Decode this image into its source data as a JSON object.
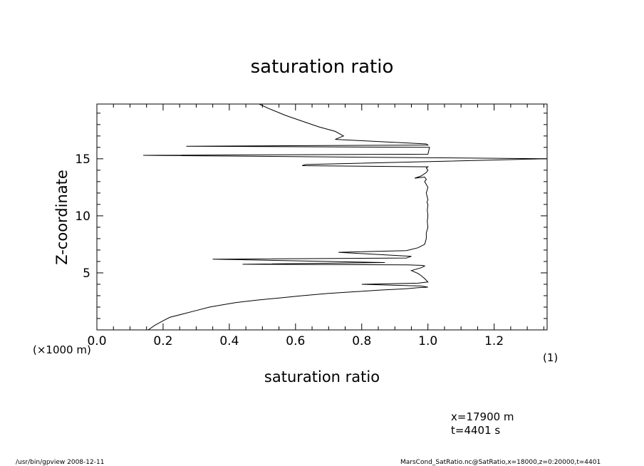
{
  "chart_data": {
    "type": "line",
    "title": "saturation ratio",
    "xlabel": "saturation ratio",
    "ylabel": "Z-coordinate",
    "x_unit_label": "(1)",
    "y_unit_label": "(×1000 m)",
    "xlim": [
      0.0,
      1.36
    ],
    "ylim": [
      0.0,
      19.8
    ],
    "x_ticks": [
      0.0,
      0.2,
      0.4,
      0.6,
      0.8,
      1.0,
      1.2
    ],
    "x_tick_labels": [
      "0.0",
      "0.2",
      "0.4",
      "0.6",
      "0.8",
      "1.0",
      "1.2"
    ],
    "y_ticks": [
      5,
      10,
      15
    ],
    "y_tick_labels": [
      "5",
      "10",
      "15"
    ],
    "grid": false,
    "legend": "none",
    "series": [
      {
        "x": [
          0.155,
          0.175,
          0.2,
          0.22,
          0.26,
          0.3,
          0.34,
          0.38,
          0.42,
          0.48,
          0.55,
          0.62,
          0.7,
          0.78,
          0.86,
          0.93,
          0.97,
          1.0,
          0.98,
          0.8,
          0.97,
          1.0,
          0.99,
          0.98,
          0.97,
          0.95,
          0.98,
          0.99,
          0.985,
          0.94,
          0.44,
          0.87,
          0.35,
          0.935,
          0.95,
          0.73,
          0.935,
          0.97,
          0.99,
          0.995,
          0.995,
          1.0,
          0.998,
          1.0,
          0.998,
          1.0,
          0.997,
          1.0,
          0.995,
          1.0,
          0.99,
          0.995,
          0.99,
          0.96,
          0.98,
          0.995,
          1.0,
          0.995,
          1.0,
          0.62,
          0.63,
          1.36,
          0.14,
          1.0,
          1.005,
          0.27,
          1.0,
          0.995,
          0.79,
          0.72,
          0.745,
          0.72,
          0.67,
          0.62,
          0.57,
          0.52,
          0.49
        ],
        "y": [
          0.0,
          0.4,
          0.8,
          1.1,
          1.4,
          1.7,
          2.0,
          2.2,
          2.4,
          2.6,
          2.8,
          3.0,
          3.2,
          3.35,
          3.5,
          3.6,
          3.7,
          3.75,
          3.85,
          4.0,
          4.1,
          4.2,
          4.5,
          4.75,
          4.95,
          5.2,
          5.45,
          5.6,
          5.65,
          5.7,
          5.75,
          5.9,
          6.2,
          6.3,
          6.45,
          6.8,
          6.95,
          7.2,
          7.5,
          8.0,
          8.5,
          9.0,
          9.5,
          10.0,
          10.5,
          11.0,
          11.2,
          11.4,
          12.0,
          12.5,
          13.0,
          13.2,
          13.4,
          13.3,
          13.5,
          13.8,
          14.0,
          14.2,
          14.3,
          14.4,
          14.5,
          15.0,
          15.3,
          15.4,
          16.0,
          16.1,
          16.2,
          16.3,
          16.6,
          16.7,
          17.0,
          17.4,
          17.8,
          18.3,
          18.8,
          19.4,
          19.8
        ]
      }
    ]
  },
  "info": {
    "x_position": "x=17900  m",
    "time": "t=4401  s"
  },
  "footer": {
    "left": "/usr/bin/gpview   2008-12-11",
    "right": "MarsCond_SatRatio.nc@SatRatio,x=18000,z=0:20000,t=4401"
  }
}
